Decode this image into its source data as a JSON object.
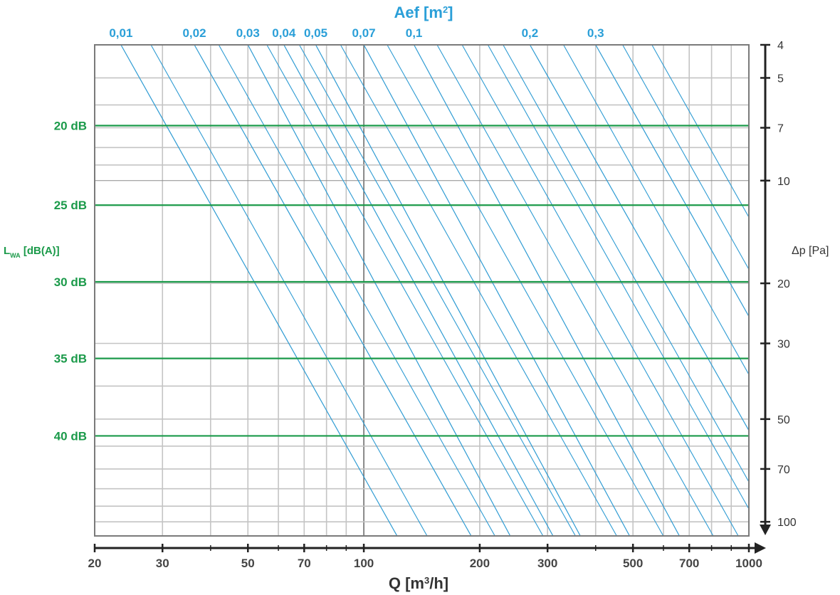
{
  "chart_data": {
    "type": "line",
    "title": "Aef [m²]",
    "title_parts": {
      "main": "Aef [m",
      "sup": "2",
      "tail": "]"
    },
    "xlabel_parts": {
      "main": "Q [m",
      "sup": "3",
      "tail": "/h]"
    },
    "ylabel": "Δp [Pa]",
    "lwa_label_parts": {
      "main": "L",
      "sub": "WA",
      "tail": " [dB(A)]"
    },
    "x_scale": "log",
    "y_scale": "log",
    "xlim": [
      20,
      1000
    ],
    "ylim": [
      4,
      110
    ],
    "x_ticks": [
      20,
      30,
      50,
      70,
      100,
      200,
      300,
      500,
      700,
      1000
    ],
    "y_ticks": [
      4,
      5,
      7,
      10,
      20,
      30,
      50,
      70,
      100
    ],
    "series": [
      {
        "aef": "0,01",
        "aef_value": 0.01,
        "points": [
          [
            23.4,
            4
          ],
          [
            122,
            110
          ]
        ]
      },
      {
        "aef": "0,02",
        "aef_value": 0.02,
        "points": [
          [
            36.3,
            4
          ],
          [
            190,
            110
          ]
        ]
      },
      {
        "aef": "0,03",
        "aef_value": 0.03,
        "points": [
          [
            50,
            4
          ],
          [
            240,
            110
          ]
        ]
      },
      {
        "aef": "0,04",
        "aef_value": 0.04,
        "points": [
          [
            62,
            4
          ],
          [
            310,
            110
          ]
        ]
      },
      {
        "aef": "0,05",
        "aef_value": 0.05,
        "points": [
          [
            75,
            4
          ],
          [
            365,
            110
          ]
        ]
      },
      {
        "aef": "0,07",
        "aef_value": 0.07,
        "points": [
          [
            100,
            4
          ],
          [
            490,
            110
          ]
        ]
      },
      {
        "aef": "0,1",
        "aef_value": 0.1,
        "points": [
          [
            135,
            4
          ],
          [
            660,
            110
          ]
        ]
      },
      {
        "aef": "0,2",
        "aef_value": 0.2,
        "points": [
          [
            270,
            4
          ],
          [
            1000,
            54
          ]
        ]
      },
      {
        "aef": "0,3",
        "aef_value": 0.3,
        "points": [
          [
            400,
            4
          ],
          [
            1000,
            25
          ]
        ]
      }
    ],
    "sound_levels": [
      {
        "label": "20 dB",
        "dp": 6.9
      },
      {
        "label": "25 dB",
        "dp": 11.8
      },
      {
        "label": "30 dB",
        "dp": 19.8
      },
      {
        "label": "35 dB",
        "dp": 33.2
      },
      {
        "label": "40 dB",
        "dp": 56
      }
    ],
    "grid": true,
    "colors": {
      "aef_lines": "#2e9bd3",
      "aef_labels": "#2a9fd8",
      "sound_lines": "#1b9a4a",
      "sound_labels": "#1b9a4a",
      "grid": "#c4c4c4",
      "frame": "#7a7a7a",
      "axis": "#222222"
    }
  }
}
